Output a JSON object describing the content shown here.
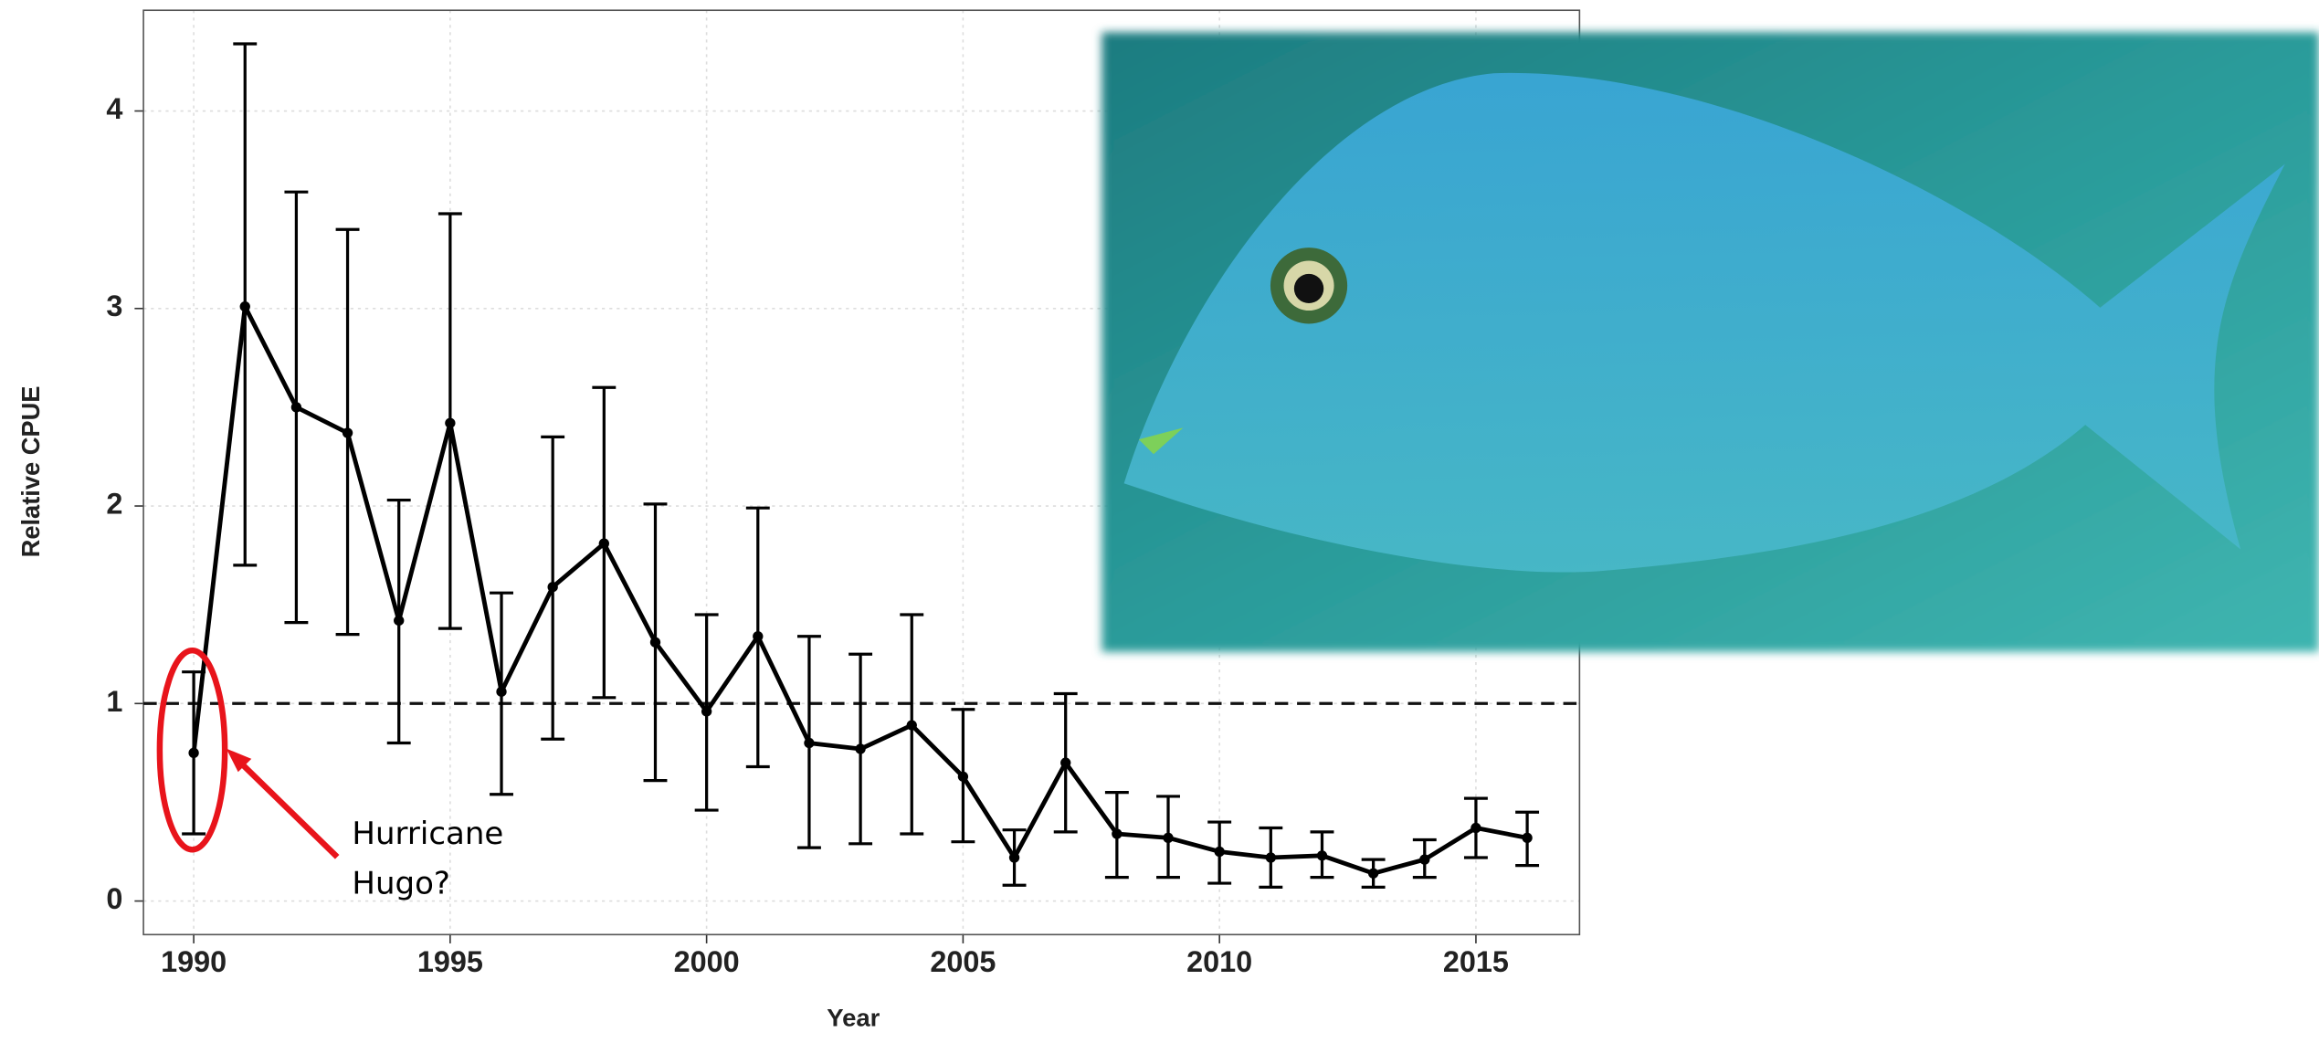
{
  "chart_data": {
    "type": "line",
    "x_label": "Year",
    "y_label": "Relative CPUE",
    "x": [
      1990,
      1991,
      1992,
      1993,
      1994,
      1995,
      1996,
      1997,
      1998,
      1999,
      2000,
      2001,
      2002,
      2003,
      2004,
      2005,
      2006,
      2007,
      2008,
      2009,
      2010,
      2011,
      2012,
      2013,
      2014,
      2015,
      2016
    ],
    "series": [
      {
        "color": "#000000",
        "values": [
          0.75,
          3.01,
          2.5,
          2.37,
          1.42,
          2.42,
          1.06,
          1.59,
          1.81,
          1.31,
          0.96,
          1.34,
          0.8,
          0.77,
          0.89,
          0.63,
          0.22,
          0.7,
          0.34,
          0.32,
          0.25,
          0.22,
          0.23,
          0.14,
          0.21,
          0.37,
          0.32
        ],
        "lower": [
          0.34,
          1.7,
          1.41,
          1.35,
          0.8,
          1.38,
          0.54,
          0.82,
          1.03,
          0.61,
          0.46,
          0.68,
          0.27,
          0.29,
          0.34,
          0.3,
          0.08,
          0.35,
          0.12,
          0.12,
          0.09,
          0.07,
          0.12,
          0.07,
          0.12,
          0.22,
          0.18
        ],
        "upper": [
          1.16,
          4.34,
          3.59,
          3.4,
          2.03,
          3.48,
          1.56,
          2.35,
          2.6,
          2.01,
          1.45,
          1.99,
          1.34,
          1.25,
          1.45,
          0.97,
          0.36,
          1.05,
          0.55,
          0.53,
          0.4,
          0.37,
          0.35,
          0.21,
          0.31,
          0.52,
          0.45
        ]
      }
    ],
    "xlim": [
      1989.02,
      2017.02
    ],
    "xticks": [
      1990,
      1995,
      2000,
      2005,
      2010,
      2015
    ],
    "ylim": [
      -0.17,
      4.51
    ],
    "yticks": [
      0,
      1,
      2,
      3,
      4
    ],
    "grid": true,
    "hline": 1,
    "annotation": "Hurricane Hugo?"
  }
}
